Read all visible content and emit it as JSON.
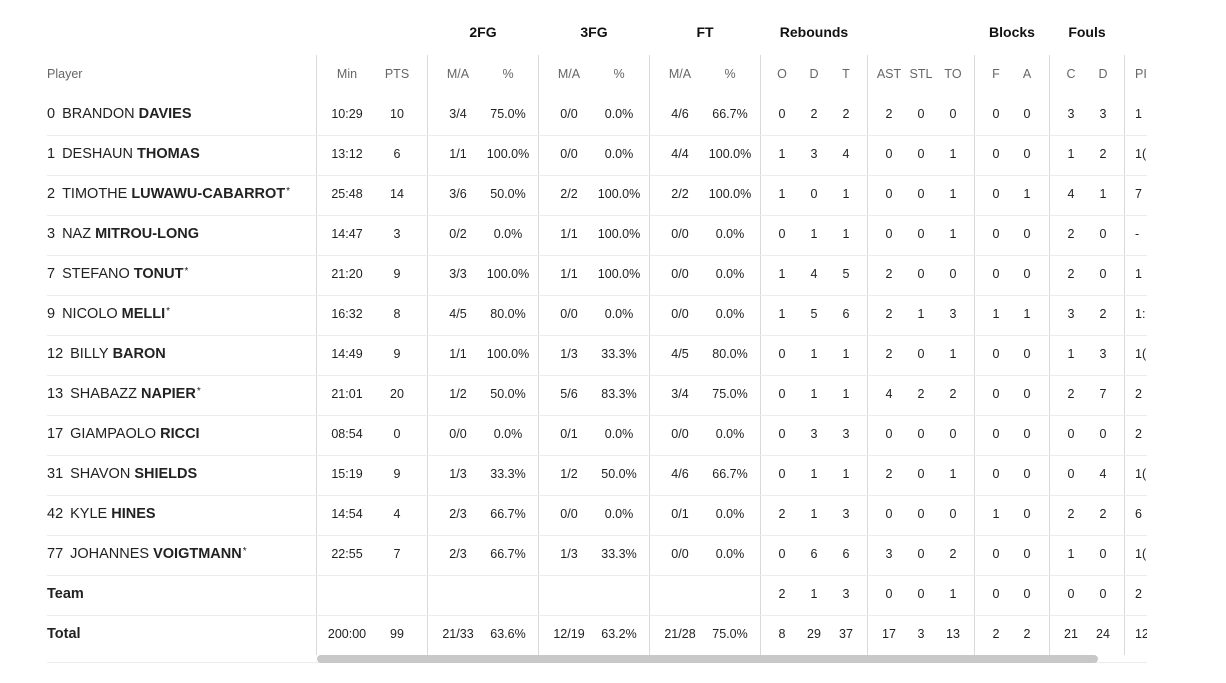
{
  "groups": {
    "fg2": "2FG",
    "fg3": "3FG",
    "ft": "FT",
    "reb": "Rebounds",
    "blk": "Blocks",
    "fouls": "Fouls"
  },
  "columns": {
    "player": "Player",
    "min": "Min",
    "pts": "PTS",
    "ma": "M/A",
    "pct": "%",
    "o": "O",
    "d": "D",
    "t": "T",
    "ast": "AST",
    "stl": "STL",
    "to": "TO",
    "bf": "F",
    "ba": "A",
    "fc": "C",
    "fd": "D",
    "pir": "PI"
  },
  "players": [
    {
      "num": "0",
      "first": "BRANDON",
      "last": "DAVIES",
      "star": "",
      "min": "10:29",
      "pts": "10",
      "fg2": "3/4",
      "fg2p": "75.0%",
      "fg3": "0/0",
      "fg3p": "0.0%",
      "ft": "4/6",
      "ftp": "66.7%",
      "o": "0",
      "d": "2",
      "t": "2",
      "ast": "2",
      "stl": "0",
      "to": "0",
      "bf": "0",
      "ba": "0",
      "fc": "3",
      "fd": "3",
      "pir": "1"
    },
    {
      "num": "1",
      "first": "DESHAUN",
      "last": "THOMAS",
      "star": "",
      "min": "13:12",
      "pts": "6",
      "fg2": "1/1",
      "fg2p": "100.0%",
      "fg3": "0/0",
      "fg3p": "0.0%",
      "ft": "4/4",
      "ftp": "100.0%",
      "o": "1",
      "d": "3",
      "t": "4",
      "ast": "0",
      "stl": "0",
      "to": "1",
      "bf": "0",
      "ba": "0",
      "fc": "1",
      "fd": "2",
      "pir": "1("
    },
    {
      "num": "2",
      "first": "TIMOTHE",
      "last": "LUWAWU-CABARROT",
      "star": "*",
      "min": "25:48",
      "pts": "14",
      "fg2": "3/6",
      "fg2p": "50.0%",
      "fg3": "2/2",
      "fg3p": "100.0%",
      "ft": "2/2",
      "ftp": "100.0%",
      "o": "1",
      "d": "0",
      "t": "1",
      "ast": "0",
      "stl": "0",
      "to": "1",
      "bf": "0",
      "ba": "1",
      "fc": "4",
      "fd": "1",
      "pir": "7"
    },
    {
      "num": "3",
      "first": "NAZ",
      "last": "MITROU-LONG",
      "star": "",
      "min": "14:47",
      "pts": "3",
      "fg2": "0/2",
      "fg2p": "0.0%",
      "fg3": "1/1",
      "fg3p": "100.0%",
      "ft": "0/0",
      "ftp": "0.0%",
      "o": "0",
      "d": "1",
      "t": "1",
      "ast": "0",
      "stl": "0",
      "to": "1",
      "bf": "0",
      "ba": "0",
      "fc": "2",
      "fd": "0",
      "pir": "-"
    },
    {
      "num": "7",
      "first": "STEFANO",
      "last": "TONUT",
      "star": "*",
      "min": "21:20",
      "pts": "9",
      "fg2": "3/3",
      "fg2p": "100.0%",
      "fg3": "1/1",
      "fg3p": "100.0%",
      "ft": "0/0",
      "ftp": "0.0%",
      "o": "1",
      "d": "4",
      "t": "5",
      "ast": "2",
      "stl": "0",
      "to": "0",
      "bf": "0",
      "ba": "0",
      "fc": "2",
      "fd": "0",
      "pir": "1"
    },
    {
      "num": "9",
      "first": "NICOLO",
      "last": "MELLI",
      "star": "*",
      "min": "16:32",
      "pts": "8",
      "fg2": "4/5",
      "fg2p": "80.0%",
      "fg3": "0/0",
      "fg3p": "0.0%",
      "ft": "0/0",
      "ftp": "0.0%",
      "o": "1",
      "d": "5",
      "t": "6",
      "ast": "2",
      "stl": "1",
      "to": "3",
      "bf": "1",
      "ba": "1",
      "fc": "3",
      "fd": "2",
      "pir": "1:"
    },
    {
      "num": "12",
      "first": "BILLY",
      "last": "BARON",
      "star": "",
      "min": "14:49",
      "pts": "9",
      "fg2": "1/1",
      "fg2p": "100.0%",
      "fg3": "1/3",
      "fg3p": "33.3%",
      "ft": "4/5",
      "ftp": "80.0%",
      "o": "0",
      "d": "1",
      "t": "1",
      "ast": "2",
      "stl": "0",
      "to": "1",
      "bf": "0",
      "ba": "0",
      "fc": "1",
      "fd": "3",
      "pir": "1("
    },
    {
      "num": "13",
      "first": "SHABAZZ",
      "last": "NAPIER",
      "star": "*",
      "min": "21:01",
      "pts": "20",
      "fg2": "1/2",
      "fg2p": "50.0%",
      "fg3": "5/6",
      "fg3p": "83.3%",
      "ft": "3/4",
      "ftp": "75.0%",
      "o": "0",
      "d": "1",
      "t": "1",
      "ast": "4",
      "stl": "2",
      "to": "2",
      "bf": "0",
      "ba": "0",
      "fc": "2",
      "fd": "7",
      "pir": "2"
    },
    {
      "num": "17",
      "first": "GIAMPAOLO",
      "last": "RICCI",
      "star": "",
      "min": "08:54",
      "pts": "0",
      "fg2": "0/0",
      "fg2p": "0.0%",
      "fg3": "0/1",
      "fg3p": "0.0%",
      "ft": "0/0",
      "ftp": "0.0%",
      "o": "0",
      "d": "3",
      "t": "3",
      "ast": "0",
      "stl": "0",
      "to": "0",
      "bf": "0",
      "ba": "0",
      "fc": "0",
      "fd": "0",
      "pir": "2"
    },
    {
      "num": "31",
      "first": "SHAVON",
      "last": "SHIELDS",
      "star": "",
      "min": "15:19",
      "pts": "9",
      "fg2": "1/3",
      "fg2p": "33.3%",
      "fg3": "1/2",
      "fg3p": "50.0%",
      "ft": "4/6",
      "ftp": "66.7%",
      "o": "0",
      "d": "1",
      "t": "1",
      "ast": "2",
      "stl": "0",
      "to": "1",
      "bf": "0",
      "ba": "0",
      "fc": "0",
      "fd": "4",
      "pir": "1("
    },
    {
      "num": "42",
      "first": "KYLE",
      "last": "HINES",
      "star": "",
      "min": "14:54",
      "pts": "4",
      "fg2": "2/3",
      "fg2p": "66.7%",
      "fg3": "0/0",
      "fg3p": "0.0%",
      "ft": "0/1",
      "ftp": "0.0%",
      "o": "2",
      "d": "1",
      "t": "3",
      "ast": "0",
      "stl": "0",
      "to": "0",
      "bf": "1",
      "ba": "0",
      "fc": "2",
      "fd": "2",
      "pir": "6"
    },
    {
      "num": "77",
      "first": "JOHANNES",
      "last": "VOIGTMANN",
      "star": "*",
      "min": "22:55",
      "pts": "7",
      "fg2": "2/3",
      "fg2p": "66.7%",
      "fg3": "1/3",
      "fg3p": "33.3%",
      "ft": "0/0",
      "ftp": "0.0%",
      "o": "0",
      "d": "6",
      "t": "6",
      "ast": "3",
      "stl": "0",
      "to": "2",
      "bf": "0",
      "ba": "0",
      "fc": "1",
      "fd": "0",
      "pir": "1("
    }
  ],
  "team": {
    "label": "Team",
    "o": "2",
    "d": "1",
    "t": "3",
    "ast": "0",
    "stl": "0",
    "to": "1",
    "bf": "0",
    "ba": "0",
    "fc": "0",
    "fd": "0",
    "pir": "2"
  },
  "total": {
    "label": "Total",
    "min": "200:00",
    "pts": "99",
    "fg2": "21/33",
    "fg2p": "63.6%",
    "fg3": "12/19",
    "fg3p": "63.2%",
    "ft": "21/28",
    "ftp": "75.0%",
    "o": "8",
    "d": "29",
    "t": "37",
    "ast": "17",
    "stl": "3",
    "to": "13",
    "bf": "2",
    "ba": "2",
    "fc": "21",
    "fd": "24",
    "pir": "12"
  }
}
